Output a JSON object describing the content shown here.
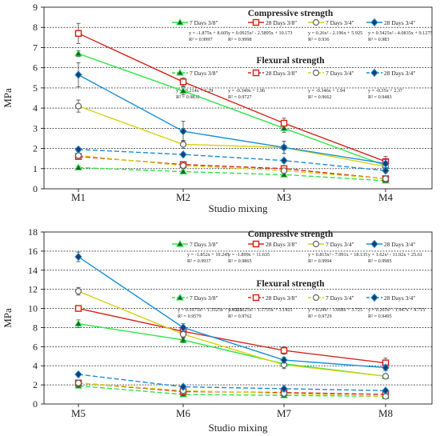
{
  "chart_data": [
    {
      "type": "line",
      "xlabel": "Studio mixing",
      "ylabel": "MPa",
      "categories": [
        "M1",
        "M2",
        "M3",
        "M4"
      ],
      "ylim": [
        0,
        9
      ],
      "yticks": [
        0,
        1,
        2,
        3,
        4,
        5,
        6,
        7,
        8,
        9
      ],
      "grid": true,
      "legend_titles": {
        "solid": "Compressive strength",
        "dashed": "Flexural strength"
      },
      "series": [
        {
          "name": "7 Days 3/8\"",
          "group": "compressive",
          "color": "#2ee54a",
          "marker": "triangle",
          "values": [
            6.7,
            4.85,
            3.0,
            1.15
          ],
          "errors": [
            0.15,
            0.2,
            0.2,
            0.1
          ]
        },
        {
          "name": "28 Days 3/8\"",
          "group": "compressive",
          "color": "#d9261c",
          "marker": "square",
          "values": [
            7.7,
            5.3,
            3.25,
            1.35
          ],
          "errors": [
            0.5,
            0.2,
            0.25,
            0.25
          ]
        },
        {
          "name": "7 Days 3/4\"",
          "group": "compressive",
          "color": "#d6d214",
          "marker": "circle",
          "values": [
            4.1,
            2.2,
            2.05,
            1.1
          ],
          "errors": [
            0.3,
            0.2,
            0.3,
            0.15
          ]
        },
        {
          "name": "28 Days 3/4\"",
          "group": "compressive",
          "color": "#1a8fd6",
          "marker": "diamond",
          "values": [
            5.65,
            2.85,
            2.05,
            1.25
          ],
          "errors": [
            0.6,
            0.5,
            0.3,
            0.2
          ]
        },
        {
          "name": "7 Days 3/8\"",
          "group": "flexural",
          "color": "#2ee54a",
          "marker": "triangle",
          "values": [
            1.05,
            0.85,
            0.7,
            0.4
          ],
          "errors": [
            0.08,
            0.08,
            0.08,
            0.08
          ]
        },
        {
          "name": "28 Days 3/8\"",
          "group": "flexural",
          "color": "#d9261c",
          "marker": "square",
          "values": [
            1.6,
            1.2,
            1.0,
            0.5
          ],
          "errors": [
            0.1,
            0.1,
            0.1,
            0.1
          ]
        },
        {
          "name": "7 Days 3/4\"",
          "group": "flexural",
          "color": "#d6d214",
          "marker": "circle",
          "values": [
            1.65,
            1.15,
            0.9,
            0.5
          ],
          "errors": [
            0.1,
            0.1,
            0.1,
            0.1
          ]
        },
        {
          "name": "28 Days 3/4\"",
          "group": "flexural",
          "color": "#1a8fd6",
          "marker": "diamond",
          "values": [
            1.95,
            1.7,
            1.4,
            0.9
          ],
          "errors": [
            0.1,
            0.1,
            0.1,
            0.1
          ]
        }
      ],
      "annotations": [
        {
          "group": "compressive",
          "index": 0,
          "lines": [
            "y = -1.875x + 8.605",
            "R² = 0.9997"
          ]
        },
        {
          "group": "compressive",
          "index": 1,
          "lines": [
            "y = 0.0925x² - 2.5895x + 10.173",
            "R² = 0.9998"
          ]
        },
        {
          "group": "compressive",
          "index": 2,
          "lines": [
            "y = 0.26x² - 2.196x + 5.925",
            "R² = 0.936"
          ]
        },
        {
          "group": "compressive",
          "index": 3,
          "lines": [
            "y = 0.5425x² - 4.0835x + 9.1275",
            "R² = 0.983"
          ]
        },
        {
          "group": "flexural",
          "index": 0,
          "lines": [
            "y = -0.214x + 1.29",
            "R² = 0.9832"
          ]
        },
        {
          "group": "flexural",
          "index": 1,
          "lines": [
            "y = -0.349x + 1.96",
            "R² = 0.9727"
          ]
        },
        {
          "group": "flexural",
          "index": 2,
          "lines": [
            "y = -0.346x + 1.94",
            "R² = 0.9662"
          ]
        },
        {
          "group": "flexural",
          "index": 3,
          "lines": [
            "y = -0.35x + 2.37",
            "R² = 0.9483"
          ]
        }
      ]
    },
    {
      "type": "line",
      "xlabel": "Studio mixing",
      "ylabel": "MPa",
      "categories": [
        "M5",
        "M6",
        "M7",
        "M8"
      ],
      "ylim": [
        0,
        18
      ],
      "yticks": [
        0,
        2,
        4,
        6,
        8,
        10,
        12,
        14,
        16,
        18
      ],
      "grid": true,
      "legend_titles": {
        "solid": "Compressive strength",
        "dashed": "Flexural strength"
      },
      "series": [
        {
          "name": "7 Days 3/8\"",
          "group": "compressive",
          "color": "#2ee54a",
          "marker": "triangle",
          "values": [
            8.4,
            6.7,
            4.2,
            2.9
          ],
          "errors": [
            0.4,
            0.3,
            0.3,
            0.2
          ]
        },
        {
          "name": "28 Days 3/8\"",
          "group": "compressive",
          "color": "#d9261c",
          "marker": "square",
          "values": [
            10.0,
            7.6,
            5.6,
            4.3
          ],
          "errors": [
            0.2,
            0.4,
            0.4,
            0.5
          ]
        },
        {
          "name": "7 Days 3/4\"",
          "group": "compressive",
          "color": "#d6d214",
          "marker": "circle",
          "values": [
            11.8,
            7.3,
            4.1,
            2.9
          ],
          "errors": [
            0.4,
            0.4,
            0.4,
            0.2
          ]
        },
        {
          "name": "28 Days 3/4\"",
          "group": "compressive",
          "color": "#1a8fd6",
          "marker": "diamond",
          "values": [
            15.4,
            8.0,
            4.6,
            3.8
          ],
          "errors": [
            0.5,
            0.4,
            0.3,
            0.3
          ]
        },
        {
          "name": "7 Days 3/8\"",
          "group": "flexural",
          "color": "#2ee54a",
          "marker": "triangle",
          "values": [
            1.9,
            1.0,
            0.9,
            0.8
          ],
          "errors": [
            0.15,
            0.1,
            0.1,
            0.1
          ]
        },
        {
          "name": "28 Days 3/8\"",
          "group": "flexural",
          "color": "#d9261c",
          "marker": "square",
          "values": [
            2.2,
            1.3,
            1.2,
            1.0
          ],
          "errors": [
            0.15,
            0.1,
            0.1,
            0.1
          ]
        },
        {
          "name": "7 Days 3/4\"",
          "group": "flexural",
          "color": "#d6d214",
          "marker": "circle",
          "values": [
            2.2,
            1.4,
            1.1,
            0.8
          ],
          "errors": [
            0.15,
            0.1,
            0.1,
            0.1
          ]
        },
        {
          "name": "28 Days 3/4\"",
          "group": "flexural",
          "color": "#1a8fd6",
          "marker": "diamond",
          "values": [
            3.1,
            1.8,
            1.6,
            1.4
          ],
          "errors": [
            0.15,
            0.1,
            0.1,
            0.1
          ]
        }
      ],
      "annotations": [
        {
          "group": "compressive",
          "index": 0,
          "lines": [
            "y = -1.852x + 10.245",
            "R² = 0.9937"
          ]
        },
        {
          "group": "compressive",
          "index": 1,
          "lines": [
            "y = -1.899x + 11.635",
            "R² = 0.9865"
          ]
        },
        {
          "group": "compressive",
          "index": 2,
          "lines": [
            "y = 0.815x² - 7.091x + 18.135",
            "R² = 0.9994"
          ]
        },
        {
          "group": "compressive",
          "index": 3,
          "lines": [
            "y = 1.62x² - 11.92x + 25.61",
            "R² = 0.9985"
          ]
        },
        {
          "group": "flexural",
          "index": 0,
          "lines": [
            "y = 0.1975x² - 1.3525x + 3.0225",
            "R² = 0.9579"
          ]
        },
        {
          "group": "flexural",
          "index": 1,
          "lines": [
            "y = 0.1625x² - 1.1755x + 3.1425",
            "R² = 0.9762"
          ]
        },
        {
          "group": "flexural",
          "index": 2,
          "lines": [
            "y = 0.24x² - 1.668x + 3.725",
            "R² = 0.9729"
          ]
        },
        {
          "group": "flexural",
          "index": 3,
          "lines": [
            "y = 0.265x² - 1.947x + 4.715",
            "R² = 0.9495"
          ]
        }
      ]
    }
  ]
}
